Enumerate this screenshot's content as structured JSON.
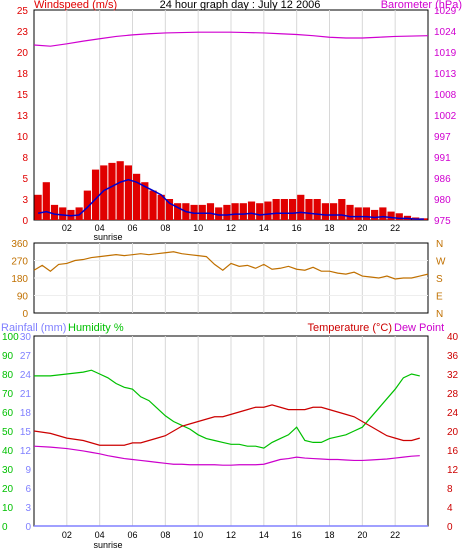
{
  "title": "24 hour graph day : July 12 2006",
  "hour_labels": [
    "02",
    "04",
    "06",
    "08",
    "10",
    "12",
    "14",
    "16",
    "18",
    "20",
    "22"
  ],
  "sunrise_label": "sunrise",
  "colors": {
    "wind": "#e00000",
    "gust": "#0000cc",
    "baro": "#d000d0",
    "dir": "#c07000",
    "rain": "#8080ff",
    "humid": "#00c000",
    "temp": "#cc0000",
    "dew": "#cc00cc",
    "grid": "#d8d8d8",
    "frame": "#000000"
  },
  "chart_data": [
    {
      "type": "bar",
      "left_axis_label": "Windspeed (m/s)",
      "right_axis_label": "Barometer (hPa)",
      "left_ticks": [
        "0",
        "3",
        "5",
        "8",
        "10",
        "13",
        "15",
        "18",
        "20",
        "23",
        "25"
      ],
      "right_ticks": [
        "975",
        "980",
        "986",
        "991",
        "997",
        "1002",
        "1008",
        "1013",
        "1019",
        "1024",
        "1029"
      ],
      "xlim": [
        0,
        24
      ],
      "ylim_wind": [
        0,
        25
      ],
      "ylim_baro": [
        975,
        1029
      ],
      "series": [
        {
          "key": "wind_peak",
          "x": [
            0.0,
            0.5,
            1.0,
            1.5,
            2.0,
            2.5,
            3.0,
            3.5,
            4.0,
            4.5,
            5.0,
            5.5,
            6.0,
            6.5,
            7.0,
            7.5,
            8.0,
            8.5,
            9.0,
            9.5,
            10.0,
            10.5,
            11.0,
            11.5,
            12.0,
            12.5,
            13.0,
            13.5,
            14.0,
            14.5,
            15.0,
            15.5,
            16.0,
            16.5,
            17.0,
            17.5,
            18.0,
            18.5,
            19.0,
            19.5,
            20.0,
            20.5,
            21.0,
            21.5,
            22.0,
            22.5,
            23.0,
            23.5
          ],
          "values": [
            3.0,
            4.5,
            1.8,
            1.5,
            1.2,
            1.5,
            3.5,
            6.0,
            6.5,
            6.8,
            7.0,
            6.5,
            5.5,
            4.5,
            3.5,
            3.0,
            2.5,
            2.0,
            2.0,
            1.8,
            1.8,
            2.0,
            1.5,
            1.8,
            2.0,
            2.0,
            2.2,
            2.0,
            2.2,
            2.5,
            2.5,
            2.5,
            3.0,
            2.5,
            2.5,
            2.0,
            2.0,
            2.5,
            1.8,
            1.5,
            1.5,
            1.2,
            1.5,
            1.0,
            0.8,
            0.5,
            0.3,
            0.2
          ]
        },
        {
          "key": "wind_avg",
          "x": [
            0.0,
            0.5,
            1.0,
            1.5,
            2.0,
            2.5,
            3.0,
            3.5,
            4.0,
            4.5,
            5.0,
            5.5,
            6.0,
            6.5,
            7.0,
            7.5,
            8.0,
            8.5,
            9.0,
            9.5,
            10.0,
            10.5,
            11.0,
            11.5,
            12.0,
            12.5,
            13.0,
            13.5,
            14.0,
            14.5,
            15.0,
            15.5,
            16.0,
            16.5,
            17.0,
            17.5,
            18.0,
            18.5,
            19.0,
            19.5,
            20.0,
            20.5,
            21.0,
            21.5,
            22.0,
            22.5,
            23.0,
            23.5
          ],
          "values": [
            0.8,
            1.0,
            0.7,
            0.6,
            0.5,
            0.6,
            1.5,
            2.5,
            3.5,
            4.0,
            4.5,
            4.8,
            4.5,
            4.0,
            3.5,
            3.0,
            2.0,
            1.5,
            1.0,
            0.8,
            0.8,
            0.8,
            0.6,
            0.6,
            0.7,
            0.7,
            0.8,
            0.6,
            0.7,
            0.8,
            0.8,
            0.8,
            0.9,
            0.8,
            0.7,
            0.6,
            0.6,
            0.6,
            0.4,
            0.4,
            0.4,
            0.3,
            0.4,
            0.3,
            0.2,
            0.2,
            0.1,
            0.1
          ]
        },
        {
          "key": "barometer",
          "x": [
            0,
            1,
            2,
            3,
            4,
            5,
            6,
            7,
            8,
            9,
            10,
            11,
            12,
            13,
            14,
            15,
            16,
            17,
            18,
            19,
            20,
            21,
            22,
            23,
            24
          ],
          "values": [
            1020.0,
            1019.7,
            1020.3,
            1021.0,
            1021.6,
            1022.2,
            1022.6,
            1022.9,
            1023.1,
            1023.2,
            1023.3,
            1023.3,
            1023.3,
            1023.2,
            1023.1,
            1022.9,
            1022.7,
            1022.4,
            1022.0,
            1021.8,
            1021.8,
            1022.0,
            1022.2,
            1022.3,
            1022.4
          ]
        }
      ]
    },
    {
      "type": "line",
      "right_axis_label": "N W S E N",
      "left_ticks": [
        "0",
        "90",
        "180",
        "270",
        "360"
      ],
      "right_ticks": [
        "N",
        "E",
        "S",
        "W",
        "N"
      ],
      "xlim": [
        0,
        24
      ],
      "ylim": [
        0,
        360
      ],
      "series": [
        {
          "key": "direction",
          "x": [
            0,
            0.5,
            1,
            1.5,
            2,
            2.5,
            3,
            3.5,
            4,
            4.5,
            5,
            5.5,
            6,
            6.5,
            7,
            7.5,
            8,
            8.5,
            9,
            9.5,
            10,
            10.5,
            11,
            11.5,
            12,
            12.5,
            13,
            13.5,
            14,
            14.5,
            15,
            15.5,
            16,
            16.5,
            17,
            17.5,
            18,
            18.5,
            19,
            19.5,
            20,
            20.5,
            21,
            21.5,
            22,
            22.5,
            23,
            23.5,
            24
          ],
          "values": [
            220,
            245,
            215,
            250,
            255,
            270,
            275,
            285,
            290,
            295,
            300,
            295,
            300,
            305,
            300,
            305,
            310,
            315,
            305,
            300,
            295,
            290,
            250,
            220,
            255,
            240,
            245,
            230,
            250,
            225,
            230,
            240,
            225,
            220,
            235,
            215,
            215,
            205,
            200,
            210,
            190,
            185,
            180,
            190,
            175,
            180,
            180,
            190,
            200
          ]
        }
      ]
    },
    {
      "type": "line",
      "rain_axis_label": "Rainfall (mm)",
      "humid_axis_label": "Humidity %",
      "temp_axis_label": "Temperature (°C)",
      "dew_axis_label": "Dew Point",
      "humid_ticks": [
        "0",
        "10",
        "20",
        "30",
        "40",
        "50",
        "60",
        "70",
        "80",
        "90",
        "100"
      ],
      "rain_ticks": [
        "0",
        "3",
        "6",
        "9",
        "12",
        "15",
        "18",
        "21",
        "24",
        "27",
        "30"
      ],
      "temp_ticks": [
        "0",
        "4",
        "8",
        "12",
        "16",
        "20",
        "24",
        "28",
        "32",
        "36",
        "40"
      ],
      "xlim": [
        0,
        24
      ],
      "ylim_humid": [
        0,
        100
      ],
      "ylim_temp": [
        0,
        40
      ],
      "series": [
        {
          "key": "humidity",
          "x": [
            0,
            1,
            2,
            3,
            3.5,
            4,
            4.5,
            5,
            5.5,
            6,
            6.5,
            7,
            7.5,
            8,
            8.5,
            9,
            9.5,
            10,
            10.5,
            11,
            11.5,
            12,
            12.5,
            13,
            13.5,
            14,
            14.5,
            15,
            15.5,
            16,
            16.5,
            17,
            17.5,
            18,
            18.5,
            19,
            19.5,
            20,
            20.5,
            21,
            21.5,
            22,
            22.5,
            23,
            23.5
          ],
          "values": [
            79,
            79,
            80,
            81,
            82,
            80,
            78,
            75,
            73,
            72,
            68,
            66,
            62,
            58,
            55,
            53,
            51,
            48,
            46,
            45,
            44,
            43,
            43,
            42,
            42,
            41,
            44,
            46,
            48,
            52,
            45,
            44,
            44,
            46,
            47,
            48,
            50,
            52,
            57,
            62,
            67,
            72,
            78,
            80,
            79
          ]
        },
        {
          "key": "temperature",
          "x": [
            0,
            1,
            2,
            3,
            3.5,
            4,
            4.5,
            5,
            5.5,
            6,
            6.5,
            7,
            7.5,
            8,
            8.5,
            9,
            9.5,
            10,
            10.5,
            11,
            11.5,
            12,
            12.5,
            13,
            13.5,
            14,
            14.5,
            15,
            15.5,
            16,
            16.5,
            17,
            17.5,
            18,
            18.5,
            19,
            19.5,
            20,
            20.5,
            21,
            21.5,
            22,
            22.5,
            23,
            23.5
          ],
          "values": [
            20,
            19.5,
            18.5,
            18,
            17.5,
            17,
            17,
            17,
            17,
            17.5,
            17.5,
            18,
            18.5,
            19,
            20,
            21,
            21.5,
            22,
            22.5,
            23,
            23,
            23.5,
            24,
            24.5,
            25,
            25,
            25.5,
            25,
            24.5,
            24.5,
            24.5,
            25,
            25,
            24.5,
            24,
            23.5,
            23,
            22,
            21,
            20,
            19,
            18.5,
            18,
            18,
            18.5
          ]
        },
        {
          "key": "dew_point",
          "x": [
            0,
            1,
            2,
            3,
            3.5,
            4,
            4.5,
            5,
            5.5,
            6,
            6.5,
            7,
            7.5,
            8,
            8.5,
            9,
            9.5,
            10,
            10.5,
            11,
            11.5,
            12,
            12.5,
            13,
            13.5,
            14,
            14.5,
            15,
            15.5,
            16,
            16.5,
            17,
            17.5,
            18,
            18.5,
            19,
            19.5,
            20,
            20.5,
            21,
            21.5,
            22,
            22.5,
            23,
            23.5
          ],
          "values": [
            16.8,
            16.6,
            16.3,
            15.8,
            15.5,
            15.2,
            14.8,
            14.5,
            14.2,
            14,
            13.8,
            13.6,
            13.4,
            13.2,
            13,
            13,
            12.9,
            12.9,
            12.9,
            12.9,
            12.8,
            12.8,
            12.9,
            12.9,
            12.9,
            13,
            13.5,
            14,
            14.2,
            14.5,
            14.3,
            14.2,
            14.1,
            14,
            14,
            13.9,
            13.8,
            13.8,
            13.9,
            14,
            14.1,
            14.3,
            14.5,
            14.7,
            14.8
          ]
        },
        {
          "key": "rainfall",
          "x": [
            0,
            24
          ],
          "values": [
            0,
            0
          ]
        }
      ]
    }
  ]
}
